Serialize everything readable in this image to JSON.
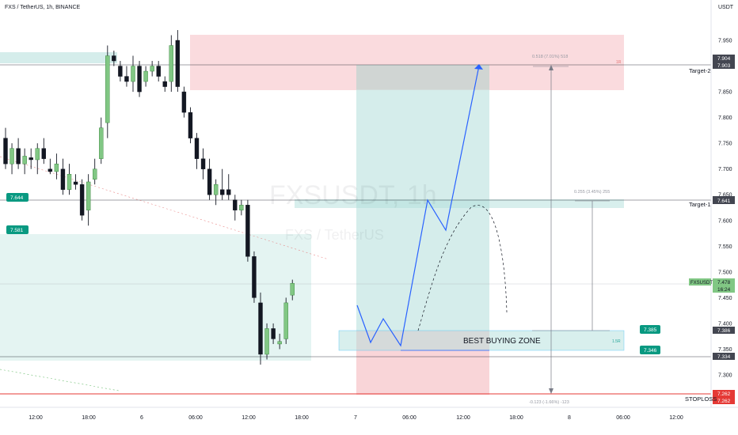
{
  "header": {
    "symbol_title": "FXS / TetherUS, 1h, BINANCE"
  },
  "watermark": {
    "symbol": "FXSUSDT, 1h",
    "name": "FXS / TetherUS"
  },
  "price_axis": {
    "currency": "USDT",
    "ticks": [
      "7.950",
      "7.900",
      "7.850",
      "7.800",
      "7.750",
      "7.700",
      "7.650",
      "7.600",
      "7.550",
      "7.500",
      "7.450",
      "7.400",
      "7.350",
      "7.300"
    ]
  },
  "time_axis": {
    "ticks": [
      "12:00",
      "18:00",
      "6",
      "06:00",
      "12:00",
      "18:00",
      "7",
      "06:00",
      "12:00",
      "18:00",
      "8",
      "06:00",
      "12:00"
    ]
  },
  "left_badges": [
    {
      "value": "7.644",
      "color": "#089981"
    },
    {
      "value": "7.581",
      "color": "#089981"
    }
  ],
  "right_badges": {
    "target2": [
      "7.904",
      "7.903"
    ],
    "target1": "7.641",
    "symbol_badge": {
      "name": "FXSUSDT",
      "price": "7.478",
      "countdown": "16:24"
    },
    "zone_top": "7.385",
    "zone_top_axis": "7.386",
    "zone_bottom": "7.346",
    "low_line": "7.334",
    "stop": [
      "7.262",
      "7.262"
    ]
  },
  "level_labels": {
    "target2": "Target-2",
    "target1": "Target-1",
    "stoploss": "STOPLOSS"
  },
  "zone_label": "BEST BUYING ZONE",
  "measure_labels": {
    "top": "0.518 (7.01%) 518",
    "mid": "0.255 (3.45%) 255",
    "bottom": "-0.123 (-1.66%) -123",
    "small_top": "1R",
    "small_zone": "1.5R"
  },
  "colors": {
    "bull": "#81c784",
    "bear": "#131722",
    "green_zone": "#b2dfdb",
    "red_zone": "#f7c3c8",
    "path_line": "#2962ff",
    "stop_line": "#e53935",
    "badge_green": "#089981",
    "badge_dark": "#434651"
  },
  "chart_data": {
    "type": "candlestick",
    "candles": [
      {
        "o": 7.76,
        "h": 7.78,
        "l": 7.7,
        "c": 7.71
      },
      {
        "o": 7.71,
        "h": 7.75,
        "l": 7.69,
        "c": 7.74
      },
      {
        "o": 7.74,
        "h": 7.76,
        "l": 7.7,
        "c": 7.71
      },
      {
        "o": 7.71,
        "h": 7.74,
        "l": 7.69,
        "c": 7.725
      },
      {
        "o": 7.722,
        "h": 7.74,
        "l": 7.7,
        "c": 7.718
      },
      {
        "o": 7.718,
        "h": 7.75,
        "l": 7.69,
        "c": 7.74
      },
      {
        "o": 7.74,
        "h": 7.76,
        "l": 7.71,
        "c": 7.72
      },
      {
        "o": 7.7,
        "h": 7.72,
        "l": 7.69,
        "c": 7.695
      },
      {
        "o": 7.695,
        "h": 7.73,
        "l": 7.68,
        "c": 7.71
      },
      {
        "o": 7.7,
        "h": 7.72,
        "l": 7.65,
        "c": 7.66
      },
      {
        "o": 7.66,
        "h": 7.71,
        "l": 7.65,
        "c": 7.69
      },
      {
        "o": 7.675,
        "h": 7.69,
        "l": 7.66,
        "c": 7.67
      },
      {
        "o": 7.67,
        "h": 7.68,
        "l": 7.6,
        "c": 7.61
      },
      {
        "o": 7.62,
        "h": 7.69,
        "l": 7.59,
        "c": 7.675
      },
      {
        "o": 7.68,
        "h": 7.72,
        "l": 7.67,
        "c": 7.7
      },
      {
        "o": 7.72,
        "h": 7.8,
        "l": 7.71,
        "c": 7.78
      },
      {
        "o": 7.79,
        "h": 7.94,
        "l": 7.76,
        "c": 7.92
      },
      {
        "o": 7.92,
        "h": 7.93,
        "l": 7.9,
        "c": 7.91
      },
      {
        "o": 7.9,
        "h": 7.91,
        "l": 7.87,
        "c": 7.88
      },
      {
        "o": 7.88,
        "h": 7.9,
        "l": 7.86,
        "c": 7.87
      },
      {
        "o": 7.87,
        "h": 7.92,
        "l": 7.85,
        "c": 7.9
      },
      {
        "o": 7.9,
        "h": 7.91,
        "l": 7.84,
        "c": 7.85
      },
      {
        "o": 7.87,
        "h": 7.9,
        "l": 7.86,
        "c": 7.89
      },
      {
        "o": 7.89,
        "h": 7.91,
        "l": 7.88,
        "c": 7.9
      },
      {
        "o": 7.9,
        "h": 7.91,
        "l": 7.87,
        "c": 7.88
      },
      {
        "o": 7.87,
        "h": 7.88,
        "l": 7.85,
        "c": 7.86
      },
      {
        "o": 7.87,
        "h": 7.96,
        "l": 7.85,
        "c": 7.94
      },
      {
        "o": 7.95,
        "h": 7.97,
        "l": 7.85,
        "c": 7.86
      },
      {
        "o": 7.85,
        "h": 7.86,
        "l": 7.8,
        "c": 7.81
      },
      {
        "o": 7.81,
        "h": 7.82,
        "l": 7.75,
        "c": 7.76
      },
      {
        "o": 7.76,
        "h": 7.77,
        "l": 7.7,
        "c": 7.72
      },
      {
        "o": 7.72,
        "h": 7.74,
        "l": 7.68,
        "c": 7.7
      },
      {
        "o": 7.7,
        "h": 7.72,
        "l": 7.64,
        "c": 7.65
      },
      {
        "o": 7.65,
        "h": 7.68,
        "l": 7.63,
        "c": 7.67
      },
      {
        "o": 7.66,
        "h": 7.7,
        "l": 7.64,
        "c": 7.65
      },
      {
        "o": 7.66,
        "h": 7.69,
        "l": 7.64,
        "c": 7.65
      },
      {
        "o": 7.64,
        "h": 7.65,
        "l": 7.6,
        "c": 7.62
      },
      {
        "o": 7.62,
        "h": 7.64,
        "l": 7.61,
        "c": 7.63
      },
      {
        "o": 7.63,
        "h": 7.64,
        "l": 7.52,
        "c": 7.53
      },
      {
        "o": 7.53,
        "h": 7.54,
        "l": 7.44,
        "c": 7.45
      },
      {
        "o": 7.44,
        "h": 7.46,
        "l": 7.32,
        "c": 7.34
      },
      {
        "o": 7.34,
        "h": 7.4,
        "l": 7.33,
        "c": 7.39
      },
      {
        "o": 7.39,
        "h": 7.4,
        "l": 7.36,
        "c": 7.37
      },
      {
        "o": 7.36,
        "h": 7.38,
        "l": 7.35,
        "c": 7.365
      },
      {
        "o": 7.37,
        "h": 7.45,
        "l": 7.36,
        "c": 7.44
      },
      {
        "o": 7.455,
        "h": 7.485,
        "l": 7.445,
        "c": 7.478
      }
    ]
  }
}
